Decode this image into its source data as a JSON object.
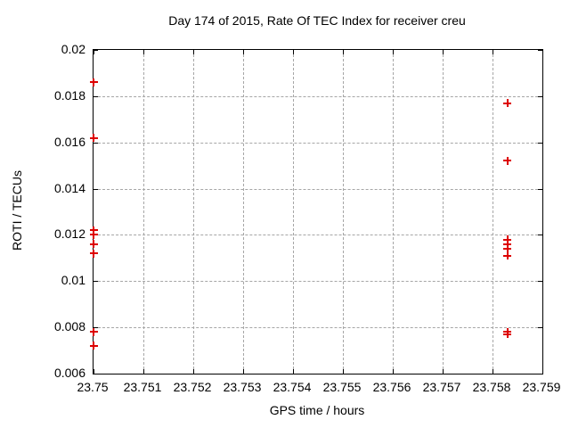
{
  "chart_data": {
    "type": "scatter",
    "title": "Day 174 of 2015, Rate Of TEC Index for receiver creu",
    "xlabel": "GPS time / hours",
    "ylabel": "ROTI / TECUs",
    "xlim": [
      23.75,
      23.759
    ],
    "ylim": [
      0.006,
      0.02
    ],
    "x_ticks": [
      23.75,
      23.751,
      23.752,
      23.753,
      23.754,
      23.755,
      23.756,
      23.757,
      23.758,
      23.759
    ],
    "x_tick_labels": [
      "23.75",
      "23.751",
      "23.752",
      "23.753",
      "23.754",
      "23.755",
      "23.756",
      "23.757",
      "23.758",
      "23.759"
    ],
    "y_ticks": [
      0.006,
      0.008,
      0.01,
      0.012,
      0.014,
      0.016,
      0.018,
      0.02
    ],
    "y_tick_labels": [
      "0.006",
      "0.008",
      "0.01",
      "0.012",
      "0.014",
      "0.016",
      "0.018",
      "0.02"
    ],
    "grid": true,
    "grid_style": "dashed",
    "legend": "none",
    "marker": "plus",
    "marker_color": "#dd0000",
    "grid_color": "#a6a6a6",
    "background_color": "#ffffff",
    "series": [
      {
        "name": "ROTI",
        "points": [
          [
            23.75,
            0.0186
          ],
          [
            23.75,
            0.0162
          ],
          [
            23.75,
            0.0122
          ],
          [
            23.75,
            0.012
          ],
          [
            23.75,
            0.0116
          ],
          [
            23.75,
            0.0112
          ],
          [
            23.75,
            0.0078
          ],
          [
            23.75,
            0.0072
          ],
          [
            23.7583,
            0.0177
          ],
          [
            23.7583,
            0.0152
          ],
          [
            23.7583,
            0.0118
          ],
          [
            23.7583,
            0.0116
          ],
          [
            23.7583,
            0.0114
          ],
          [
            23.7583,
            0.0111
          ],
          [
            23.7583,
            0.0078
          ],
          [
            23.7583,
            0.0077
          ]
        ]
      }
    ]
  }
}
